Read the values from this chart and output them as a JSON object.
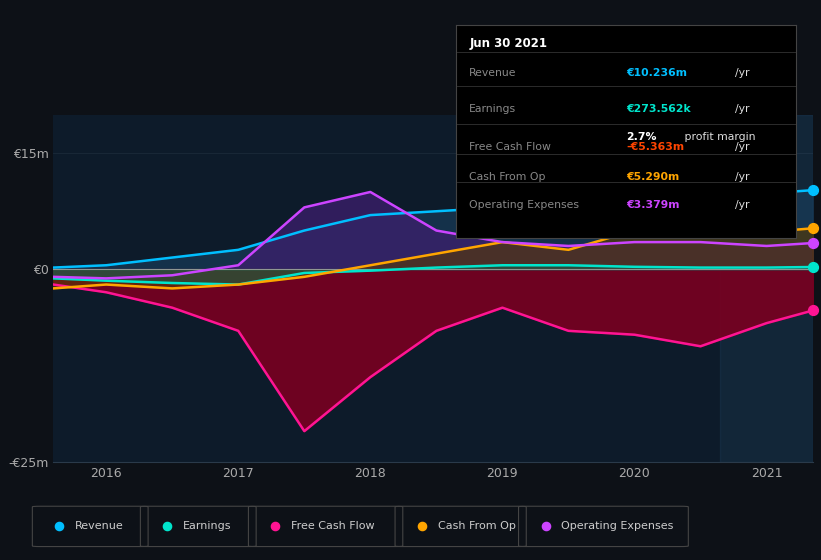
{
  "bg_color": "#0d1117",
  "plot_bg_color": "#0d1b2a",
  "ylim": [
    -25000000,
    20000000
  ],
  "yticks": [
    -25000000,
    0,
    15000000
  ],
  "ytick_labels": [
    "-€25m",
    "€0",
    "€15m"
  ],
  "years": [
    2015.6,
    2016.0,
    2016.5,
    2017.0,
    2017.5,
    2018.0,
    2018.5,
    2019.0,
    2019.5,
    2020.0,
    2020.5,
    2021.0,
    2021.35
  ],
  "revenue": [
    200000,
    500000,
    1500000,
    2500000,
    5000000,
    7000000,
    7500000,
    8000000,
    9500000,
    11000000,
    10000000,
    9800000,
    10236000
  ],
  "earnings": [
    -1200000,
    -1500000,
    -1800000,
    -2000000,
    -500000,
    -200000,
    200000,
    500000,
    500000,
    300000,
    200000,
    200000,
    273562
  ],
  "free_cash_flow": [
    -2000000,
    -3000000,
    -5000000,
    -8000000,
    -21000000,
    -14000000,
    -8000000,
    -5000000,
    -8000000,
    -8500000,
    -10000000,
    -7000000,
    -5363000
  ],
  "cash_from_op": [
    -2500000,
    -2000000,
    -2500000,
    -2000000,
    -1000000,
    500000,
    2000000,
    3500000,
    2500000,
    5000000,
    4500000,
    4800000,
    5290000
  ],
  "operating_expenses": [
    -1000000,
    -1200000,
    -800000,
    500000,
    8000000,
    10000000,
    5000000,
    3500000,
    3000000,
    3500000,
    3500000,
    3000000,
    3379000
  ],
  "revenue_color": "#00bfff",
  "earnings_color": "#00e5cc",
  "free_cash_flow_color": "#ff1493",
  "cash_from_op_color": "#ffa500",
  "operating_expenses_color": "#cc44ff",
  "revenue_fill": "#1a4060",
  "earnings_fill": "#1a5a4a",
  "free_cash_flow_fill": "#7a0020",
  "cash_from_op_fill": "#5a3a00",
  "operating_expenses_fill": "#3d1f6e",
  "zero_line_color": "#aaaaaa",
  "grid_color": "#1e2d3d",
  "xtick_labels": [
    "2016",
    "2017",
    "2018",
    "2019",
    "2020",
    "2021"
  ],
  "xtick_positions": [
    2016,
    2017,
    2018,
    2019,
    2020,
    2021
  ],
  "info_box": {
    "date": "Jun 30 2021",
    "revenue_val": "€10.236m",
    "revenue_color": "#00bfff",
    "earnings_val": "€273.562k",
    "earnings_color": "#00e5cc",
    "profit_margin": "2.7%",
    "fcf_val": "-€5.363m",
    "fcf_color": "#ff4500",
    "cashop_val": "€5.290m",
    "cashop_color": "#ffa500",
    "opex_val": "€3.379m",
    "opex_color": "#cc44ff"
  }
}
